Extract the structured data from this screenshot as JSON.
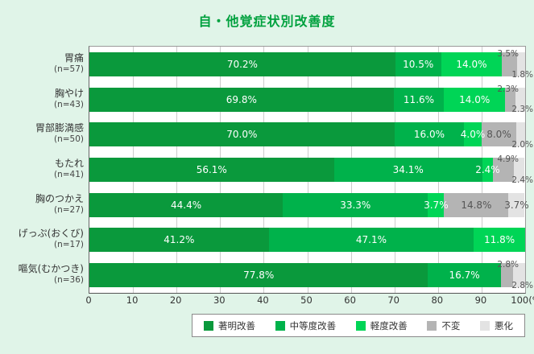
{
  "title": "自・他覚症状別改善度",
  "colors": {
    "background": "#e0f4e8",
    "title": "#00a13e",
    "marked_improvement": "#0a993c",
    "moderate_improvement": "#00b24b",
    "mild_improvement": "#00d556",
    "unchanged": "#b4b4b4",
    "worsened": "#e3e3e3",
    "inside_gray_text": "#555555",
    "inside_green_text": "#ffffff"
  },
  "legend": {
    "items": [
      {
        "label": "著明改善",
        "color": "#0a993c"
      },
      {
        "label": "中等度改善",
        "color": "#00b24b"
      },
      {
        "label": "軽度改善",
        "color": "#00d556"
      },
      {
        "label": "不変",
        "color": "#b4b4b4"
      },
      {
        "label": "悪化",
        "color": "#e3e3e3"
      }
    ]
  },
  "chart_data": {
    "type": "bar",
    "orientation": "horizontal",
    "stacked": true,
    "title": "自・他覚症状別改善度",
    "categories": [
      "胃痛",
      "胸やけ",
      "胃部膨満感",
      "もたれ",
      "胸のつかえ",
      "げっぷ(おくび)",
      "嘔気(むかつき)"
    ],
    "sample_sizes": [
      "(n=57)",
      "(n=43)",
      "(n=50)",
      "(n=41)",
      "(n=27)",
      "(n=17)",
      "(n=36)"
    ],
    "series": [
      {
        "name": "著明改善",
        "color": "#0a993c",
        "text_color": "#ffffff",
        "values": [
          70.2,
          69.8,
          70.0,
          56.1,
          44.4,
          41.2,
          77.8
        ]
      },
      {
        "name": "中等度改善",
        "color": "#00b24b",
        "text_color": "#ffffff",
        "values": [
          10.5,
          11.6,
          16.0,
          34.1,
          33.3,
          47.1,
          16.7
        ]
      },
      {
        "name": "軽度改善",
        "color": "#00d556",
        "text_color": "#ffffff",
        "values": [
          14.0,
          14.0,
          4.0,
          2.4,
          3.7,
          11.8,
          0
        ]
      },
      {
        "name": "不変",
        "color": "#b4b4b4",
        "text_color": "#555555",
        "values": [
          3.5,
          2.3,
          8.0,
          4.9,
          14.8,
          0,
          2.8
        ]
      },
      {
        "name": "悪化",
        "color": "#e3e3e3",
        "text_color": "#555555",
        "values": [
          1.8,
          2.3,
          2.0,
          2.4,
          3.7,
          0,
          2.8
        ]
      }
    ],
    "label_placements": [
      [
        "in",
        "in",
        "in",
        "top",
        "bottom"
      ],
      [
        "in",
        "in",
        "in",
        "top",
        "bottom"
      ],
      [
        "in",
        "in",
        "in",
        "in",
        "bottom"
      ],
      [
        "in",
        "in",
        "in",
        "top",
        "bottom"
      ],
      [
        "in",
        "in",
        "in",
        "in",
        "in"
      ],
      [
        "in",
        "in",
        "in",
        "none",
        "none"
      ],
      [
        "in",
        "in",
        "none",
        "top",
        "bottom"
      ]
    ],
    "xlim": [
      0,
      100
    ],
    "x_tick_labels": [
      "0",
      "10",
      "20",
      "30",
      "40",
      "50",
      "60",
      "70",
      "80",
      "90",
      "100(%)"
    ],
    "grid": true,
    "legend_position": "bottom"
  }
}
